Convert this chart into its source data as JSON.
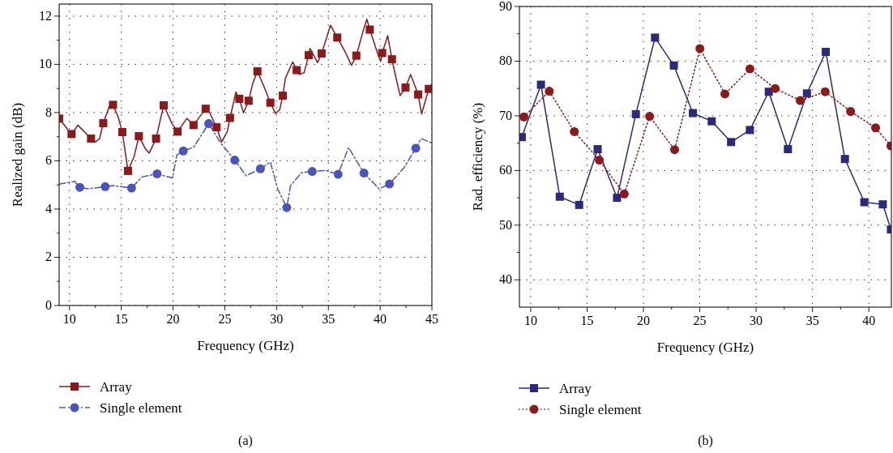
{
  "chart_data": [
    {
      "type": "line",
      "xlabel": "Frequency (GHz)",
      "ylabel": "Realized gain (dB)",
      "xlim": [
        9,
        45
      ],
      "ylim": [
        0,
        12.5
      ],
      "xticks": [
        10,
        {
          "value": 12.5,
          "label": null
        },
        15,
        {
          "value": 17.5,
          "label": null
        },
        20,
        {
          "value": 22.5,
          "label": null
        },
        25,
        {
          "value": 27.5,
          "label": null
        },
        30,
        {
          "value": 32.5,
          "label": null
        },
        35,
        {
          "value": 37.5,
          "label": null
        },
        40,
        {
          "value": 42.5,
          "label": null
        },
        45
      ],
      "yticks": [
        0,
        {
          "value": 1,
          "label": null
        },
        2,
        {
          "value": 3,
          "label": null
        },
        4,
        {
          "value": 5,
          "label": null
        },
        6,
        {
          "value": 7,
          "label": null
        },
        8,
        {
          "value": 9,
          "label": null
        },
        10,
        {
          "value": 11,
          "label": null
        },
        12
      ],
      "grid": true,
      "legend": "bottom",
      "annotations": [
        "(a)"
      ],
      "series": [
        {
          "type": "line",
          "color": "#8b1a1a",
          "line_style": "solid",
          "marker": "none",
          "x": [
            9.0,
            10.2,
            10.8,
            12.08,
            12.5,
            12.9,
            13.26,
            13.85,
            14.2,
            14.7,
            15.1,
            15.65,
            16.25,
            16.7,
            17.3,
            17.7,
            18.36,
            18.8,
            19.1,
            19.9,
            20.44,
            21.33,
            21.98,
            23.15,
            23.54,
            24.2,
            24.7,
            25.23,
            25.5,
            26.07,
            26.4,
            26.8,
            27.3,
            27.7,
            28.15,
            28.75,
            29.4,
            29.9,
            30.3,
            30.6,
            30.85,
            31.55,
            31.94,
            32.2,
            32.66,
            33.1,
            33.23,
            33.96,
            34.35,
            35.2,
            35.86,
            36.56,
            37.24,
            37.7,
            38.4,
            38.72,
            39.0,
            39.75,
            40.05,
            40.2,
            40.73,
            41.14,
            41.5,
            41.93,
            42.45,
            42.94,
            43.67,
            44.0,
            44.7,
            44.95
          ],
          "values": [
            7.76,
            7.09,
            7.48,
            6.92,
            6.78,
            6.92,
            7.56,
            8.27,
            8.32,
            7.82,
            7.19,
            5.58,
            6.19,
            7.02,
            6.52,
            6.32,
            6.92,
            7.76,
            8.3,
            7.54,
            7.21,
            7.76,
            7.48,
            8.16,
            7.99,
            7.39,
            6.78,
            7.2,
            7.78,
            8.85,
            8.57,
            7.99,
            8.49,
            9.22,
            9.71,
            9.11,
            8.41,
            7.96,
            8.12,
            8.7,
            9.42,
            10.1,
            9.76,
            9.58,
            9.65,
            10.38,
            10.66,
            10.07,
            10.45,
            11.62,
            11.11,
            10.57,
            9.96,
            10.36,
            11.45,
            11.87,
            11.44,
            10.46,
            10.12,
            10.47,
            11.19,
            10.21,
            9.5,
            8.7,
            9.04,
            9.58,
            8.75,
            7.94,
            8.98,
            9.17
          ]
        },
        {
          "type": "scatter",
          "name": "Array",
          "color": "#8b1a1a",
          "line_style": "solid",
          "marker": "square",
          "x": [
            9.0,
            10.2,
            12.08,
            13.26,
            14.2,
            15.1,
            15.65,
            16.7,
            18.36,
            19.1,
            20.44,
            21.98,
            23.15,
            24.2,
            25.5,
            26.4,
            27.3,
            28.15,
            29.4,
            30.6,
            31.94,
            33.1,
            34.35,
            35.86,
            37.7,
            39.0,
            40.2,
            41.14,
            42.45,
            43.67,
            44.7
          ],
          "values": [
            7.75,
            7.11,
            6.92,
            7.56,
            8.32,
            7.19,
            5.58,
            7.02,
            6.92,
            8.3,
            7.21,
            7.48,
            8.16,
            7.39,
            7.78,
            8.57,
            8.49,
            9.71,
            8.41,
            8.7,
            9.76,
            10.38,
            10.45,
            11.11,
            10.36,
            11.44,
            10.47,
            10.21,
            9.04,
            8.75,
            8.98
          ]
        },
        {
          "type": "line",
          "color": "#4a55bb",
          "line_style": "dashed",
          "marker": "none",
          "x": [
            9.0,
            10.5,
            11.0,
            11.8,
            13.45,
            14.17,
            15.99,
            17.0,
            18.46,
            19.95,
            20.36,
            20.99,
            21.98,
            23.44,
            24.58,
            25.96,
            27.06,
            28.44,
            29.4,
            30.1,
            30.98,
            31.35,
            32.4,
            33.44,
            34.74,
            35.94,
            36.95,
            38.44,
            39.9,
            40.9,
            42.3,
            43.44,
            43.96,
            44.95
          ],
          "values": [
            5.03,
            5.15,
            4.9,
            4.84,
            4.93,
            4.97,
            4.87,
            5.33,
            5.46,
            5.29,
            6.24,
            6.41,
            6.56,
            7.54,
            6.75,
            6.03,
            5.38,
            5.67,
            5.95,
            4.84,
            4.06,
            4.97,
            5.51,
            5.56,
            5.6,
            5.44,
            6.55,
            5.49,
            4.84,
            5.04,
            5.71,
            6.52,
            6.92,
            6.75
          ]
        },
        {
          "type": "scatter",
          "name": "Single element",
          "color": "#4a55bb",
          "line_style": "dashed",
          "marker": "circle",
          "x": [
            11.0,
            13.45,
            15.99,
            18.46,
            20.99,
            23.44,
            25.96,
            28.44,
            30.98,
            33.44,
            35.94,
            38.44,
            40.9,
            43.44
          ],
          "values": [
            4.9,
            4.93,
            4.87,
            5.46,
            6.41,
            7.54,
            6.03,
            5.67,
            4.06,
            5.56,
            5.44,
            5.49,
            5.04,
            6.52
          ]
        }
      ]
    },
    {
      "type": "line",
      "xlabel": "Frequency (GHz)",
      "ylabel": "Rad. efficiency (%)",
      "xlim": [
        9,
        42
      ],
      "ylim": [
        35,
        90
      ],
      "xticks": [
        10,
        {
          "value": 12.5,
          "label": null
        },
        15,
        {
          "value": 17.5,
          "label": null
        },
        20,
        {
          "value": 22.5,
          "label": null
        },
        25,
        {
          "value": 27.5,
          "label": null
        },
        30,
        {
          "value": 32.5,
          "label": null
        },
        35,
        {
          "value": 37.5,
          "label": null
        },
        40
      ],
      "yticks": [
        40,
        {
          "value": 45,
          "label": null
        },
        50,
        {
          "value": 55,
          "label": null
        },
        60,
        {
          "value": 65,
          "label": null
        },
        70,
        {
          "value": 75,
          "label": null
        },
        80,
        {
          "value": 85,
          "label": null
        },
        90
      ],
      "grid": true,
      "legend": "bottom",
      "annotations": [
        "(b)"
      ],
      "series": [
        {
          "type": "line",
          "name": "Array",
          "color": "#2b2a7a",
          "line_style": "solid",
          "marker": "square",
          "x": [
            9.21,
            10.91,
            12.58,
            14.3,
            15.94,
            17.66,
            19.33,
            21.03,
            22.7,
            24.39,
            26.06,
            27.78,
            29.45,
            31.12,
            32.82,
            34.51,
            36.18,
            37.88,
            39.6,
            41.24,
            41.96
          ],
          "values": [
            66.1,
            75.7,
            55.2,
            53.7,
            63.9,
            55.0,
            70.3,
            84.3,
            79.2,
            70.5,
            69.0,
            65.2,
            67.4,
            74.4,
            63.9,
            74.1,
            81.7,
            62.1,
            54.2,
            53.8,
            49.2
          ]
        },
        {
          "type": "line",
          "name": "Single element",
          "color": "#8b1a1a",
          "line_style": "dotted",
          "marker": "circle",
          "x": [
            9.4,
            11.65,
            13.87,
            16.09,
            18.3,
            20.55,
            22.77,
            25.01,
            27.23,
            29.45,
            31.69,
            33.91,
            36.13,
            38.38,
            40.6,
            41.96
          ],
          "values": [
            69.8,
            74.5,
            67.1,
            61.9,
            55.7,
            69.9,
            63.8,
            82.3,
            74.0,
            78.6,
            75.0,
            72.8,
            74.4,
            70.8,
            67.8,
            64.5
          ]
        }
      ]
    }
  ]
}
